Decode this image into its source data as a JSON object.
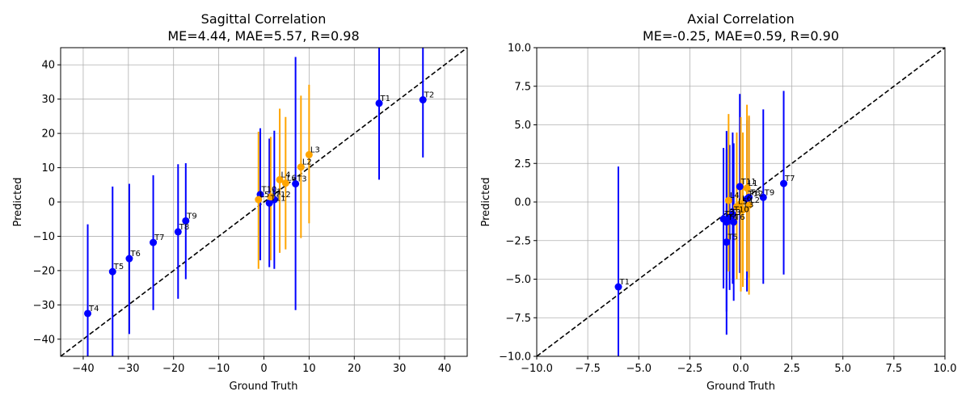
{
  "chart_data": [
    {
      "type": "scatter",
      "title": "Sagittal Correlation",
      "subtitle": "ME=4.44, MAE=5.57, R=0.98",
      "xlabel": "Ground Truth",
      "ylabel": "Predicted",
      "xlim": [
        -45,
        45
      ],
      "ylim": [
        -45,
        45
      ],
      "xticks": [
        -40,
        -30,
        -20,
        -10,
        0,
        10,
        20,
        30,
        40
      ],
      "yticks": [
        -40,
        -30,
        -20,
        -10,
        0,
        10,
        20,
        30,
        40
      ],
      "grid": true,
      "identity_line": true,
      "colors": {
        "thoracic": "#0000ff",
        "lumbar": "#ffa500",
        "identity": "#000000",
        "grid": "#b0b0b0"
      },
      "points": [
        {
          "label": "T1",
          "x": 25.5,
          "y": 28.8,
          "err_low": 6.5,
          "err_high": 45,
          "group": "thoracic"
        },
        {
          "label": "T2",
          "x": 35.2,
          "y": 29.8,
          "err_low": 13,
          "err_high": 45,
          "group": "thoracic"
        },
        {
          "label": "T3",
          "x": 7.0,
          "y": 5.3,
          "err_low": -31.5,
          "err_high": 42.3,
          "group": "thoracic"
        },
        {
          "label": "T4",
          "x": -39.0,
          "y": -32.5,
          "err_low": -45,
          "err_high": -6.5,
          "group": "thoracic"
        },
        {
          "label": "T5",
          "x": -33.5,
          "y": -20.3,
          "err_low": -45,
          "err_high": 4.5,
          "group": "thoracic"
        },
        {
          "label": "T6",
          "x": -29.8,
          "y": -16.5,
          "err_low": -38.5,
          "err_high": 5.3,
          "group": "thoracic"
        },
        {
          "label": "T7",
          "x": -24.5,
          "y": -11.8,
          "err_low": -31.5,
          "err_high": 7.8,
          "group": "thoracic"
        },
        {
          "label": "T8",
          "x": -19.0,
          "y": -8.7,
          "err_low": -28.2,
          "err_high": 11.0,
          "group": "thoracic"
        },
        {
          "label": "T9",
          "x": -17.3,
          "y": -5.5,
          "err_low": -22.5,
          "err_high": 11.3,
          "group": "thoracic"
        },
        {
          "label": "T10",
          "x": -0.8,
          "y": 2.2,
          "err_low": -17,
          "err_high": 21.5,
          "group": "thoracic"
        },
        {
          "label": "T11",
          "x": 1.2,
          "y": -0.3,
          "err_low": -19,
          "err_high": 18.5,
          "group": "thoracic"
        },
        {
          "label": "T12",
          "x": 2.3,
          "y": 0.7,
          "err_low": -19.5,
          "err_high": 20.8,
          "group": "thoracic"
        },
        {
          "label": "L1",
          "x": 1.5,
          "y": 1.5,
          "err_low": -17,
          "err_high": 19,
          "group": "lumbar"
        },
        {
          "label": "L2",
          "x": 8.2,
          "y": 10.2,
          "err_low": -10.5,
          "err_high": 31.0,
          "group": "lumbar"
        },
        {
          "label": "L3",
          "x": 10.0,
          "y": 13.8,
          "err_low": -6.2,
          "err_high": 34.2,
          "group": "lumbar"
        },
        {
          "label": "L4",
          "x": 3.5,
          "y": 6.5,
          "err_low": -14.8,
          "err_high": 27.2,
          "group": "lumbar"
        },
        {
          "label": "L5",
          "x": -1.2,
          "y": 0.7,
          "err_low": -19.5,
          "err_high": 20.5,
          "group": "lumbar"
        },
        {
          "label": "L6",
          "x": 4.8,
          "y": 5.5,
          "err_low": -13.8,
          "err_high": 24.8,
          "group": "lumbar"
        }
      ]
    },
    {
      "type": "scatter",
      "title": "Axial Correlation",
      "subtitle": "ME=-0.25, MAE=0.59, R=0.90",
      "xlabel": "Ground Truth",
      "ylabel": "Predicted",
      "xlim": [
        -10,
        10
      ],
      "ylim": [
        -10,
        10
      ],
      "xticks": [
        -10,
        -7.5,
        -5,
        -2.5,
        0,
        2.5,
        5,
        7.5,
        10
      ],
      "yticks": [
        -10,
        -7.5,
        -5,
        -2.5,
        0,
        2.5,
        5,
        7.5,
        10
      ],
      "grid": true,
      "identity_line": true,
      "colors": {
        "thoracic": "#0000ff",
        "lumbar": "#ffa500",
        "identity": "#000000",
        "grid": "#b0b0b0"
      },
      "points": [
        {
          "label": "T1",
          "x": -6.0,
          "y": -5.5,
          "err_low": -10,
          "err_high": 2.3,
          "group": "thoracic"
        },
        {
          "label": "T2",
          "x": -0.85,
          "y": -1.1,
          "err_low": -5.6,
          "err_high": 3.5,
          "group": "thoracic"
        },
        {
          "label": "T3",
          "x": -0.55,
          "y": -1.0,
          "err_low": -5.7,
          "err_high": 3.7,
          "group": "thoracic"
        },
        {
          "label": "T4",
          "x": -0.7,
          "y": -1.3,
          "err_low": -7.1,
          "err_high": 4.6,
          "group": "thoracic"
        },
        {
          "label": "T5",
          "x": -0.7,
          "y": -2.6,
          "err_low": -8.6,
          "err_high": 3.4,
          "group": "thoracic"
        },
        {
          "label": "T6",
          "x": -0.35,
          "y": -1.3,
          "err_low": -6.4,
          "err_high": 3.8,
          "group": "thoracic"
        },
        {
          "label": "T7",
          "x": 2.1,
          "y": 1.2,
          "err_low": -4.7,
          "err_high": 7.2,
          "group": "thoracic"
        },
        {
          "label": "T8",
          "x": 0.4,
          "y": 0.3,
          "err_low": -4.9,
          "err_high": 5.5,
          "group": "thoracic"
        },
        {
          "label": "T9",
          "x": 1.1,
          "y": 0.3,
          "err_low": -5.3,
          "err_high": 6.0,
          "group": "thoracic"
        },
        {
          "label": "T10",
          "x": -0.4,
          "y": -0.8,
          "err_low": -5.3,
          "err_high": 4.5,
          "group": "thoracic"
        },
        {
          "label": "T11",
          "x": -0.05,
          "y": 1.0,
          "err_low": -4.6,
          "err_high": 7.0,
          "group": "thoracic"
        },
        {
          "label": "T12",
          "x": 0.3,
          "y": 0.2,
          "err_low": -5.8,
          "err_high": 5.3,
          "group": "thoracic"
        },
        {
          "label": "L1",
          "x": 0.3,
          "y": 0.9,
          "err_low": -4.5,
          "err_high": 6.3,
          "group": "lumbar"
        },
        {
          "label": "L2",
          "x": 0.4,
          "y": -0.2,
          "err_low": -6.0,
          "err_high": 5.6,
          "group": "lumbar"
        },
        {
          "label": "L3",
          "x": 0.1,
          "y": -0.5,
          "err_low": -5.5,
          "err_high": 4.5,
          "group": "lumbar"
        },
        {
          "label": "L4",
          "x": -0.6,
          "y": 0.1,
          "err_low": -4.5,
          "err_high": 5.7,
          "group": "lumbar"
        },
        {
          "label": "L5",
          "x": -0.2,
          "y": -0.3,
          "err_low": -5.0,
          "err_high": 4.5,
          "group": "lumbar"
        },
        {
          "label": "L6",
          "x": 0.0,
          "y": -0.1,
          "err_low": -5.8,
          "err_high": 5.5,
          "group": "lumbar"
        }
      ]
    }
  ]
}
